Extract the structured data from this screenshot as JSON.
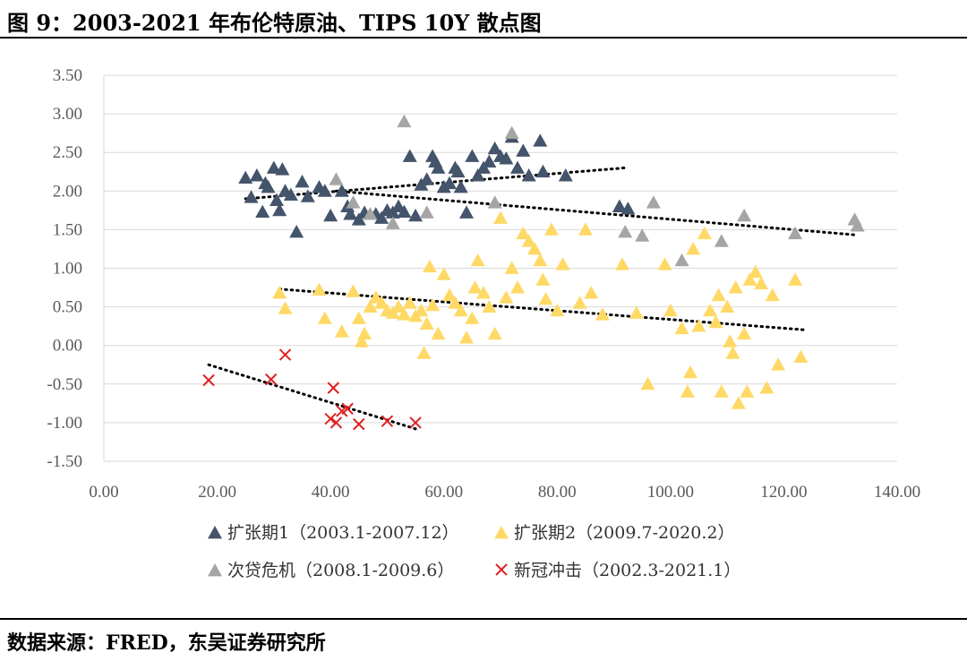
{
  "title": "图 9：2003-2021 年布伦特原油、TIPS 10Y 散点图",
  "source": "数据来源：FRED，东吴证券研究所",
  "chart_data": {
    "type": "scatter",
    "xlim": [
      0,
      140
    ],
    "ylim": [
      -1.5,
      3.5
    ],
    "x_ticks": [
      "0.00",
      "20.00",
      "40.00",
      "60.00",
      "80.00",
      "100.00",
      "120.00",
      "140.00"
    ],
    "y_ticks": [
      "3.50",
      "3.00",
      "2.50",
      "2.00",
      "1.50",
      "1.00",
      "0.50",
      "0.00",
      "-0.50",
      "-1.00",
      "-1.50"
    ],
    "grid": "horizontal",
    "legend_position": "bottom",
    "series": [
      {
        "name": "扩张期1（2003.1-2007.12）",
        "marker": "triangle",
        "color": "#44546a",
        "points": [
          [
            25,
            2.17
          ],
          [
            26,
            1.92
          ],
          [
            27,
            2.2
          ],
          [
            28,
            1.73
          ],
          [
            28.5,
            2.1
          ],
          [
            29,
            2.05
          ],
          [
            30,
            2.3
          ],
          [
            30.5,
            1.88
          ],
          [
            31,
            1.75
          ],
          [
            31.5,
            2.28
          ],
          [
            32,
            2.0
          ],
          [
            33,
            1.95
          ],
          [
            34,
            1.47
          ],
          [
            35,
            2.12
          ],
          [
            36,
            1.93
          ],
          [
            38,
            2.05
          ],
          [
            39,
            2.0
          ],
          [
            40,
            1.68
          ],
          [
            42,
            2.0
          ],
          [
            43,
            1.8
          ],
          [
            43.5,
            1.7
          ],
          [
            45,
            1.63
          ],
          [
            46,
            1.72
          ],
          [
            48,
            1.7
          ],
          [
            49,
            1.65
          ],
          [
            50,
            1.75
          ],
          [
            51,
            1.72
          ],
          [
            52,
            1.8
          ],
          [
            53,
            1.73
          ],
          [
            54,
            2.45
          ],
          [
            55,
            1.68
          ],
          [
            56,
            2.08
          ],
          [
            57,
            2.15
          ],
          [
            58,
            2.45
          ],
          [
            58.5,
            2.38
          ],
          [
            59,
            2.3
          ],
          [
            60,
            2.05
          ],
          [
            61,
            2.1
          ],
          [
            62,
            2.3
          ],
          [
            62.5,
            2.25
          ],
          [
            63,
            2.05
          ],
          [
            64,
            1.72
          ],
          [
            65,
            2.45
          ],
          [
            66,
            2.2
          ],
          [
            67,
            2.3
          ],
          [
            68,
            2.38
          ],
          [
            69,
            2.55
          ],
          [
            70,
            2.45
          ],
          [
            71,
            2.42
          ],
          [
            72,
            2.7
          ],
          [
            73,
            2.3
          ],
          [
            74,
            2.52
          ],
          [
            75,
            2.2
          ],
          [
            77,
            2.65
          ],
          [
            77.5,
            2.25
          ],
          [
            81.5,
            2.2
          ],
          [
            91,
            1.8
          ],
          [
            92.5,
            1.77
          ]
        ]
      },
      {
        "name": "扩张期2（2009.7-2020.2）",
        "marker": "triangle",
        "color": "#ffd966",
        "points": [
          [
            31,
            0.68
          ],
          [
            32,
            0.48
          ],
          [
            38,
            0.72
          ],
          [
            39,
            0.35
          ],
          [
            42,
            0.18
          ],
          [
            44,
            0.7
          ],
          [
            45,
            0.35
          ],
          [
            45.5,
            0.05
          ],
          [
            46,
            0.15
          ],
          [
            47,
            0.5
          ],
          [
            48,
            0.62
          ],
          [
            49,
            0.55
          ],
          [
            50,
            0.45
          ],
          [
            51,
            0.42
          ],
          [
            52,
            0.5
          ],
          [
            53,
            0.4
          ],
          [
            54,
            0.55
          ],
          [
            55,
            0.38
          ],
          [
            56,
            0.45
          ],
          [
            56.5,
            -0.1
          ],
          [
            57,
            0.28
          ],
          [
            57.5,
            1.02
          ],
          [
            58,
            0.52
          ],
          [
            59,
            0.15
          ],
          [
            60,
            0.92
          ],
          [
            61,
            0.65
          ],
          [
            62,
            0.55
          ],
          [
            63,
            0.45
          ],
          [
            64,
            0.1
          ],
          [
            65,
            0.35
          ],
          [
            65.5,
            0.75
          ],
          [
            66,
            1.1
          ],
          [
            67,
            0.68
          ],
          [
            68,
            0.5
          ],
          [
            69,
            0.15
          ],
          [
            70,
            1.65
          ],
          [
            71,
            0.62
          ],
          [
            72,
            1.0
          ],
          [
            73,
            0.75
          ],
          [
            74,
            1.45
          ],
          [
            75,
            1.35
          ],
          [
            76,
            1.25
          ],
          [
            77,
            1.1
          ],
          [
            77.5,
            0.85
          ],
          [
            78,
            0.6
          ],
          [
            79,
            1.5
          ],
          [
            80,
            0.45
          ],
          [
            81,
            1.05
          ],
          [
            84,
            0.55
          ],
          [
            85,
            1.5
          ],
          [
            86,
            0.68
          ],
          [
            88,
            0.4
          ],
          [
            91.5,
            1.05
          ],
          [
            94,
            0.42
          ],
          [
            96,
            -0.5
          ],
          [
            99,
            1.05
          ],
          [
            100,
            0.45
          ],
          [
            102,
            0.22
          ],
          [
            103,
            -0.6
          ],
          [
            103.5,
            -0.35
          ],
          [
            104,
            1.25
          ],
          [
            105,
            0.25
          ],
          [
            106,
            1.45
          ],
          [
            107,
            0.45
          ],
          [
            108,
            0.3
          ],
          [
            108.5,
            0.65
          ],
          [
            109,
            -0.6
          ],
          [
            110,
            0.5
          ],
          [
            110.5,
            0.05
          ],
          [
            111,
            -0.1
          ],
          [
            111.5,
            0.75
          ],
          [
            112,
            -0.75
          ],
          [
            113,
            0.15
          ],
          [
            113.5,
            -0.6
          ],
          [
            114,
            0.85
          ],
          [
            115,
            0.95
          ],
          [
            116,
            0.8
          ],
          [
            117,
            -0.55
          ],
          [
            118,
            0.65
          ],
          [
            119,
            -0.25
          ],
          [
            122,
            0.85
          ],
          [
            123,
            -0.15
          ]
        ]
      },
      {
        "name": "次贷危机（2008.1-2009.6）",
        "marker": "triangle",
        "color": "#a5a5a5",
        "points": [
          [
            41,
            2.15
          ],
          [
            44,
            1.85
          ],
          [
            47,
            1.7
          ],
          [
            51,
            1.58
          ],
          [
            53,
            2.9
          ],
          [
            57,
            1.72
          ],
          [
            69,
            1.85
          ],
          [
            72,
            2.75
          ],
          [
            92,
            1.47
          ],
          [
            95,
            1.42
          ],
          [
            97,
            1.85
          ],
          [
            102,
            1.1
          ],
          [
            109,
            1.35
          ],
          [
            113,
            1.68
          ],
          [
            122,
            1.45
          ],
          [
            132.5,
            1.63
          ],
          [
            133,
            1.55
          ]
        ]
      },
      {
        "name": "新冠冲击（2002.3-2021.1）",
        "marker": "x",
        "color": "#e02020",
        "points": [
          [
            18.5,
            -0.45
          ],
          [
            29.5,
            -0.44
          ],
          [
            32,
            -0.12
          ],
          [
            40,
            -0.95
          ],
          [
            40.5,
            -0.55
          ],
          [
            41,
            -1.0
          ],
          [
            42,
            -0.85
          ],
          [
            43,
            -0.82
          ],
          [
            45,
            -1.02
          ],
          [
            50,
            -0.98
          ],
          [
            55,
            -1.0
          ]
        ]
      }
    ],
    "trendlines": [
      {
        "series": "扩张期1（2003.1-2007.12）",
        "from": [
          25,
          1.9
        ],
        "to": [
          92,
          2.3
        ]
      },
      {
        "series": "扩张期2（2009.7-2020.2）",
        "from": [
          31,
          0.73
        ],
        "to": [
          124,
          0.2
        ]
      },
      {
        "series": "次贷危机（2008.1-2009.6）",
        "from": [
          41,
          2.0
        ],
        "to": [
          133,
          1.43
        ]
      },
      {
        "series": "新冠冲击（2002.3-2021.1）",
        "from": [
          18.5,
          -0.25
        ],
        "to": [
          55,
          -1.08
        ]
      }
    ]
  }
}
